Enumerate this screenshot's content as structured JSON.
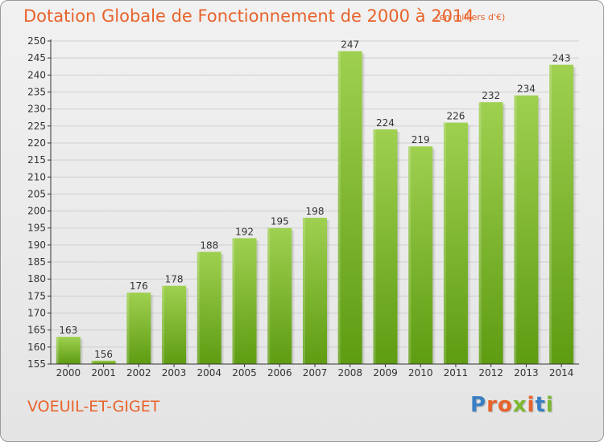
{
  "title": "Dotation Globale de Fonctionnement de 2000 à 2014",
  "subtitle": "(en milliers d'€)",
  "commune": "VOEUIL-ET-GIGET",
  "logo": {
    "text": "Proxiti",
    "letters": [
      {
        "char": "P",
        "color": "#3a7fc4"
      },
      {
        "char": "r",
        "color": "#e8632b"
      },
      {
        "char": "o",
        "color": "#e8632b"
      },
      {
        "char": "x",
        "color": "#7cb82f"
      },
      {
        "char": "i",
        "color": "#e8632b"
      },
      {
        "char": "t",
        "color": "#3a7fc4"
      },
      {
        "char": "i",
        "color": "#7cb82f"
      }
    ]
  },
  "colors": {
    "title": "#e8632b",
    "bar_top": "#9fd050",
    "bar_bottom": "#5e9c12",
    "axis": "#333333",
    "grid": "#cfcfcf"
  },
  "chart_data": {
    "type": "bar",
    "categories": [
      "2000",
      "2001",
      "2002",
      "2003",
      "2004",
      "2005",
      "2006",
      "2007",
      "2008",
      "2009",
      "2010",
      "2011",
      "2012",
      "2013",
      "2014"
    ],
    "values": [
      163,
      156,
      176,
      178,
      188,
      192,
      195,
      198,
      247,
      224,
      219,
      226,
      232,
      234,
      243
    ],
    "data_labels": [
      "163",
      "156",
      "176",
      "178",
      "188",
      "192",
      "195",
      "198",
      "247",
      "224",
      "219",
      "226",
      "232",
      "234",
      "243"
    ],
    "ylim": [
      155,
      250
    ],
    "yticks": [
      "155",
      "160",
      "165",
      "170",
      "175",
      "180",
      "185",
      "190",
      "195",
      "200",
      "205",
      "210",
      "215",
      "220",
      "225",
      "230",
      "235",
      "240",
      "245",
      "250"
    ],
    "grid": true
  }
}
